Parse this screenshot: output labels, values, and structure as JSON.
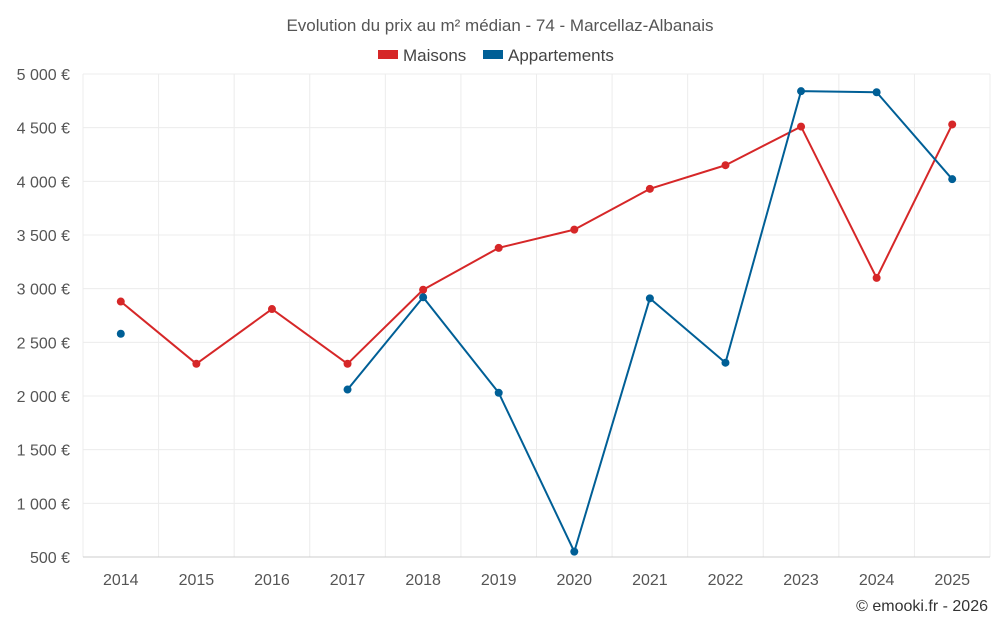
{
  "chart_data": {
    "type": "line",
    "title": "Evolution du prix au m² médian - 74 - Marcellaz-Albanais",
    "categories": [
      "2014",
      "2015",
      "2016",
      "2017",
      "2018",
      "2019",
      "2020",
      "2021",
      "2022",
      "2023",
      "2024",
      "2025"
    ],
    "series": [
      {
        "name": "Maisons",
        "color": "#d62728",
        "values": [
          2880,
          2300,
          2810,
          2300,
          2990,
          3380,
          3550,
          3930,
          4150,
          4510,
          3100,
          4530
        ]
      },
      {
        "name": "Appartements",
        "color": "#005f96",
        "values": [
          2580,
          null,
          null,
          2060,
          2920,
          2030,
          550,
          2910,
          2310,
          4840,
          4830,
          4020
        ]
      }
    ],
    "ylim": [
      500,
      5000
    ],
    "yticks": [
      500,
      1000,
      1500,
      2000,
      2500,
      3000,
      3500,
      4000,
      4500,
      5000
    ],
    "ytick_labels": [
      "500 €",
      "1 000 €",
      "1 500 €",
      "2 000 €",
      "2 500 €",
      "3 000 €",
      "3 500 €",
      "4 000 €",
      "4 500 €",
      "5 000 €"
    ],
    "xlabel": "",
    "ylabel": "",
    "grid": true,
    "legend_position": "top-center",
    "credit": "© emooki.fr - 2026"
  }
}
